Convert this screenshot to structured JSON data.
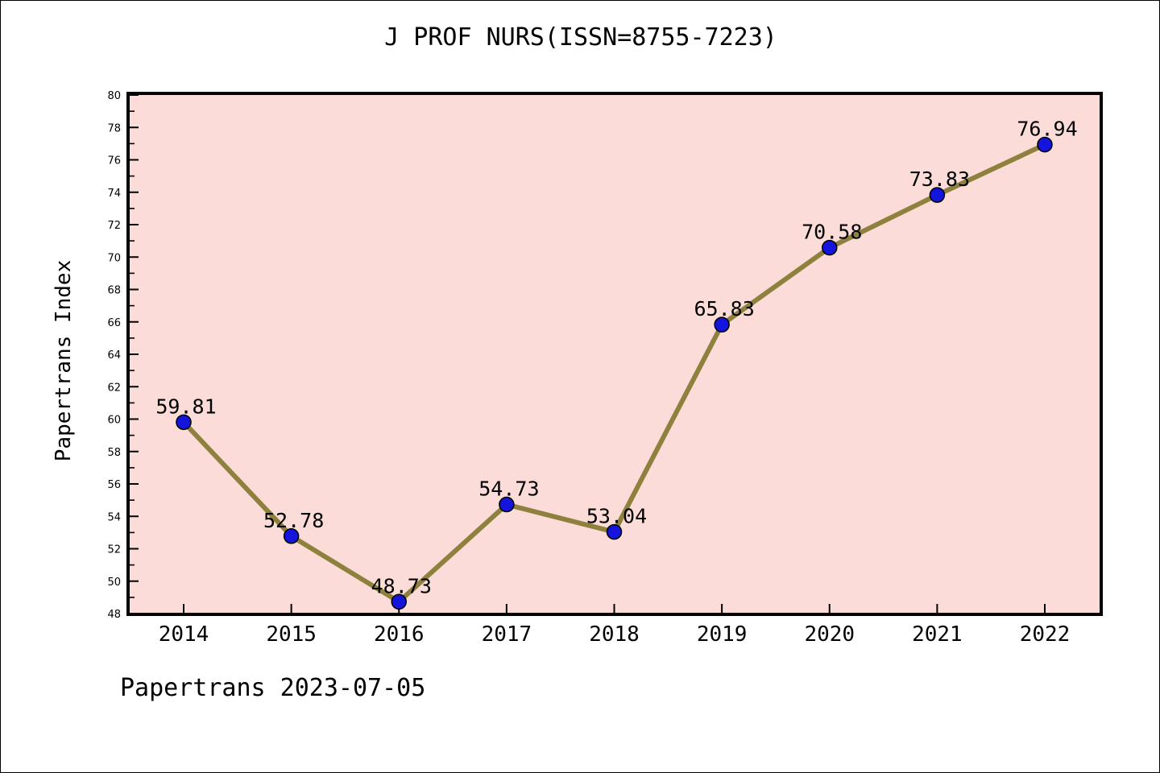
{
  "title": "J PROF NURS(ISSN=8755-7223)",
  "footer": "Papertrans 2023-07-05",
  "chart_data": {
    "type": "line",
    "title": "J PROF NURS(ISSN=8755-7223)",
    "xlabel": "",
    "ylabel": "Papertrans Index",
    "categories": [
      "2014",
      "2015",
      "2016",
      "2017",
      "2018",
      "2019",
      "2020",
      "2021",
      "2022"
    ],
    "values": [
      59.81,
      52.78,
      48.73,
      54.73,
      53.04,
      65.83,
      70.58,
      73.83,
      76.94
    ],
    "point_labels": [
      "59.81",
      "52.78",
      "48.73",
      "54.73",
      "53.04",
      "65.83",
      "70.58",
      "73.83",
      "76.94"
    ],
    "ylim": [
      48,
      80
    ],
    "ytick_step": 2,
    "yticks": [
      48,
      50,
      52,
      54,
      56,
      58,
      60,
      62,
      64,
      66,
      68,
      70,
      72,
      74,
      76,
      78,
      80
    ],
    "grid": false,
    "legend": null,
    "colors": {
      "plot_background": "#fbdcd8",
      "line": "#8e813d",
      "marker_fill": "#1414dd",
      "marker_edge": "#000000",
      "axis": "#000000",
      "text": "#000000",
      "page_background": "#ffffff"
    }
  }
}
